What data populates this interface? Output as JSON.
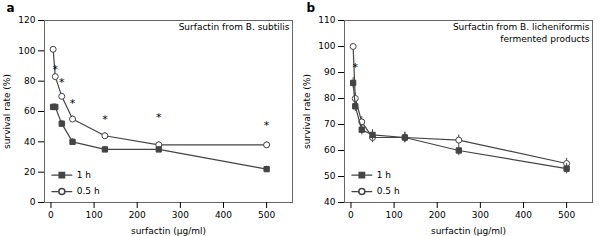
{
  "chart_data": [
    {
      "type": "line",
      "panel_label": "a",
      "title": "Surfactin from B. subtilis",
      "x_label": "surfactin (µg/ml)",
      "y_label": "survival rate (%)",
      "x": [
        5,
        10,
        25,
        50,
        125,
        250,
        500
      ],
      "xlim": [
        -15,
        560
      ],
      "xticks": [
        0,
        100,
        200,
        300,
        400,
        500
      ],
      "ylim": [
        0,
        120
      ],
      "yticks": [
        0,
        20,
        40,
        60,
        80,
        100,
        120
      ],
      "color": "#444444",
      "legend": "lower left",
      "series": [
        {
          "name": "1 h",
          "marker": "square",
          "values": [
            63,
            63,
            52,
            40,
            35,
            35,
            22
          ],
          "errors": [
            2,
            2,
            2,
            2,
            2,
            2,
            2
          ]
        },
        {
          "name": "0.5 h",
          "marker": "open-circle",
          "values": [
            101,
            83,
            70,
            55,
            44,
            38,
            38
          ],
          "errors": [
            1,
            2,
            2,
            2,
            2,
            2,
            2
          ]
        }
      ],
      "annotations": [
        {
          "text": "*",
          "x": 10,
          "y": 88
        },
        {
          "text": "*",
          "x": 25,
          "y": 79
        },
        {
          "text": "*",
          "x": 50,
          "y": 65
        },
        {
          "text": "*",
          "x": 125,
          "y": 55
        },
        {
          "text": "*",
          "x": 250,
          "y": 56
        },
        {
          "text": "*",
          "x": 500,
          "y": 51
        }
      ]
    },
    {
      "type": "line",
      "panel_label": "b",
      "title": "Surfactin from B. licheniformis",
      "subtitle": "fermented products",
      "x_label": "surfactin (µg/ml)",
      "y_label": "survival rate (%)",
      "x": [
        5,
        10,
        25,
        50,
        125,
        250,
        500
      ],
      "xlim": [
        -15,
        560
      ],
      "xticks": [
        0,
        100,
        200,
        300,
        400,
        500
      ],
      "ylim": [
        40,
        110
      ],
      "yticks": [
        40,
        50,
        60,
        70,
        80,
        90,
        100,
        110
      ],
      "color": "#444444",
      "legend": "lower left",
      "series": [
        {
          "name": "1 h",
          "marker": "square",
          "values": [
            86,
            77,
            68,
            66,
            65,
            60,
            53
          ],
          "errors": [
            2,
            2,
            2,
            2,
            2,
            2,
            2
          ]
        },
        {
          "name": "0.5 h",
          "marker": "open-circle",
          "values": [
            100,
            80,
            71,
            65,
            65,
            64,
            55
          ],
          "errors": [
            1,
            2,
            2,
            2,
            2,
            2,
            2
          ]
        }
      ],
      "annotations": [
        {
          "text": "*",
          "x": 10,
          "y": 92
        }
      ]
    }
  ]
}
